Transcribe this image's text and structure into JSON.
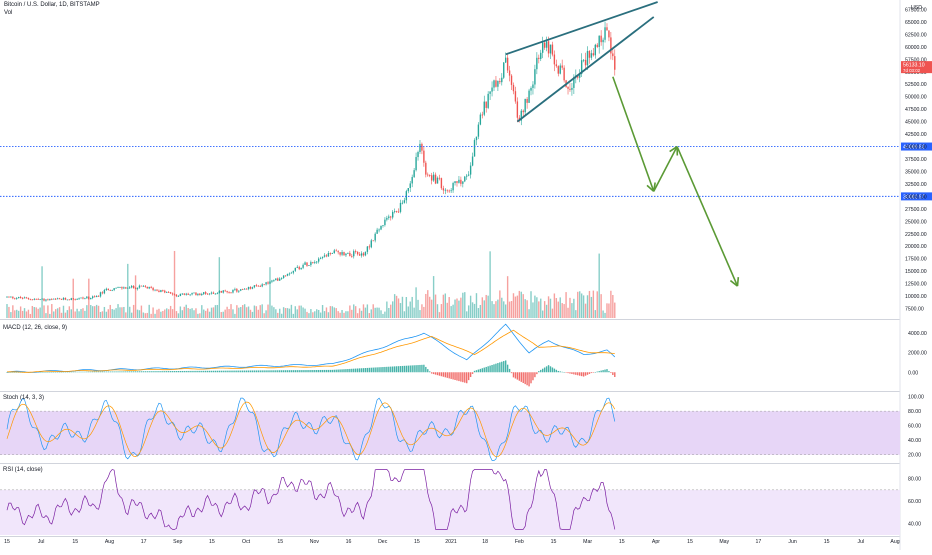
{
  "header": {
    "symbol": "Bitcoin / U.S. Dollar, 1D, BITSTAMP",
    "volume_label": "Vol",
    "currency": "USD"
  },
  "colors": {
    "up": "#26a69a",
    "down": "#ef5350",
    "trendline": "#2a6f7e",
    "arrow": "#5b9a35",
    "support_line": "#2962ff",
    "macd_line": "#2196f3",
    "signal_line": "#ff9800",
    "stoch_k": "#2196f3",
    "stoch_d": "#ff9800",
    "stoch_band": "#e7d6f7",
    "rsi_line": "#7b1fa2",
    "rsi_band": "#f1e6fb",
    "price_tag": "#ef5350"
  },
  "chart_data": [
    {
      "type": "candlestick",
      "title": "Bitcoin / U.S. Dollar, 1D, BITSTAMP",
      "y_axis_labels": [
        "67500.00",
        "65000.00",
        "62500.00",
        "60000.00",
        "57500.00",
        "55000.00",
        "52500.00",
        "50000.00",
        "47500.00",
        "45000.00",
        "42500.00",
        "40000.00",
        "37500.00",
        "35000.00",
        "32500.00",
        "30000.00",
        "27500.00",
        "25000.00",
        "22500.00",
        "20000.00",
        "17500.00",
        "15000.00",
        "12500.00",
        "10000.00",
        "7500.00"
      ],
      "ylim": [
        6000,
        69000
      ],
      "x_axis_labels": [
        "15",
        "Jul",
        "15",
        "Aug",
        "17",
        "Sep",
        "15",
        "Oct",
        "15",
        "Nov",
        "16",
        "Dec",
        "15",
        "2021",
        "18",
        "Feb",
        "15",
        "Mar",
        "15",
        "Apr",
        "15",
        "May",
        "17",
        "Jun",
        "15",
        "Jul",
        "Aug"
      ],
      "series_close_anchors": [
        [
          "2020-06-10",
          9800
        ],
        [
          "2020-07-01",
          9200
        ],
        [
          "2020-07-25",
          9700
        ],
        [
          "2020-08-01",
          11500
        ],
        [
          "2020-08-20",
          11800
        ],
        [
          "2020-09-05",
          10200
        ],
        [
          "2020-09-25",
          10700
        ],
        [
          "2020-10-10",
          11300
        ],
        [
          "2020-10-25",
          13000
        ],
        [
          "2020-11-05",
          15500
        ],
        [
          "2020-11-24",
          18800
        ],
        [
          "2020-12-10",
          18300
        ],
        [
          "2020-12-17",
          23000
        ],
        [
          "2020-12-31",
          29000
        ],
        [
          "2021-01-08",
          40500
        ],
        [
          "2021-01-11",
          35000
        ],
        [
          "2021-01-22",
          31500
        ],
        [
          "2021-02-01",
          33500
        ],
        [
          "2021-02-08",
          46500
        ],
        [
          "2021-02-21",
          56500
        ],
        [
          "2021-02-28",
          45200
        ],
        [
          "2021-03-13",
          61000
        ],
        [
          "2021-03-25",
          52000
        ],
        [
          "2021-04-13",
          63500
        ],
        [
          "2021-04-18",
          56100
        ]
      ],
      "last_price_tag": "56133.10",
      "last_price_tag_sub": "7d 03:02",
      "support_levels": [
        {
          "value": 40000,
          "label": "40069.83"
        },
        {
          "value": 30000,
          "label": "30082.97"
        }
      ],
      "projection_path": [
        [
          "2021-04-17",
          54000
        ],
        [
          "2021-05-08",
          31000
        ],
        [
          "2021-05-20",
          40000
        ],
        [
          "2021-06-20",
          12000
        ]
      ],
      "rising_wedge": {
        "upper": [
          [
            "2021-02-21",
            58500
          ],
          [
            "2021-05-10",
            69000
          ]
        ],
        "lower": [
          [
            "2021-02-27",
            45000
          ],
          [
            "2021-05-08",
            66000
          ]
        ]
      }
    },
    {
      "type": "bar",
      "title": "Vol",
      "note": "daily volume bars colored by candle direction"
    },
    {
      "type": "line",
      "title": "MACD (12, 26, close, 9)",
      "y_axis_labels": [
        "4000.00",
        "2000.00",
        "0.00"
      ],
      "ylim": [
        -1800,
        5200
      ],
      "series": [
        {
          "name": "MACD",
          "anchors": [
            [
              "2020-06-10",
              0
            ],
            [
              "2020-11-24",
              800
            ],
            [
              "2021-01-10",
              4000
            ],
            [
              "2021-02-01",
              1200
            ],
            [
              "2021-02-21",
              4800
            ],
            [
              "2021-03-05",
              2000
            ],
            [
              "2021-03-15",
              3200
            ],
            [
              "2021-04-02",
              1800
            ],
            [
              "2021-04-14",
              2200
            ],
            [
              "2021-04-18",
              1500
            ]
          ]
        },
        {
          "name": "Signal",
          "anchors": [
            [
              "2020-06-10",
              0
            ],
            [
              "2020-11-24",
              600
            ],
            [
              "2021-01-14",
              3600
            ],
            [
              "2021-02-05",
              1800
            ],
            [
              "2021-02-25",
              4300
            ],
            [
              "2021-03-10",
              2500
            ],
            [
              "2021-03-20",
              2700
            ],
            [
              "2021-04-06",
              2000
            ],
            [
              "2021-04-18",
              1900
            ]
          ]
        }
      ]
    },
    {
      "type": "line",
      "title": "Stoch (14, 3, 3)",
      "y_axis_labels": [
        "100.00",
        "80.00",
        "60.00",
        "40.00",
        "20.00"
      ],
      "ylim": [
        10,
        105
      ],
      "band": [
        20,
        80
      ]
    },
    {
      "type": "line",
      "title": "RSI (14, close)",
      "y_axis_labels": [
        "80.00",
        "60.00",
        "40.00"
      ],
      "ylim": [
        30,
        92
      ],
      "band": [
        30,
        70
      ]
    }
  ]
}
